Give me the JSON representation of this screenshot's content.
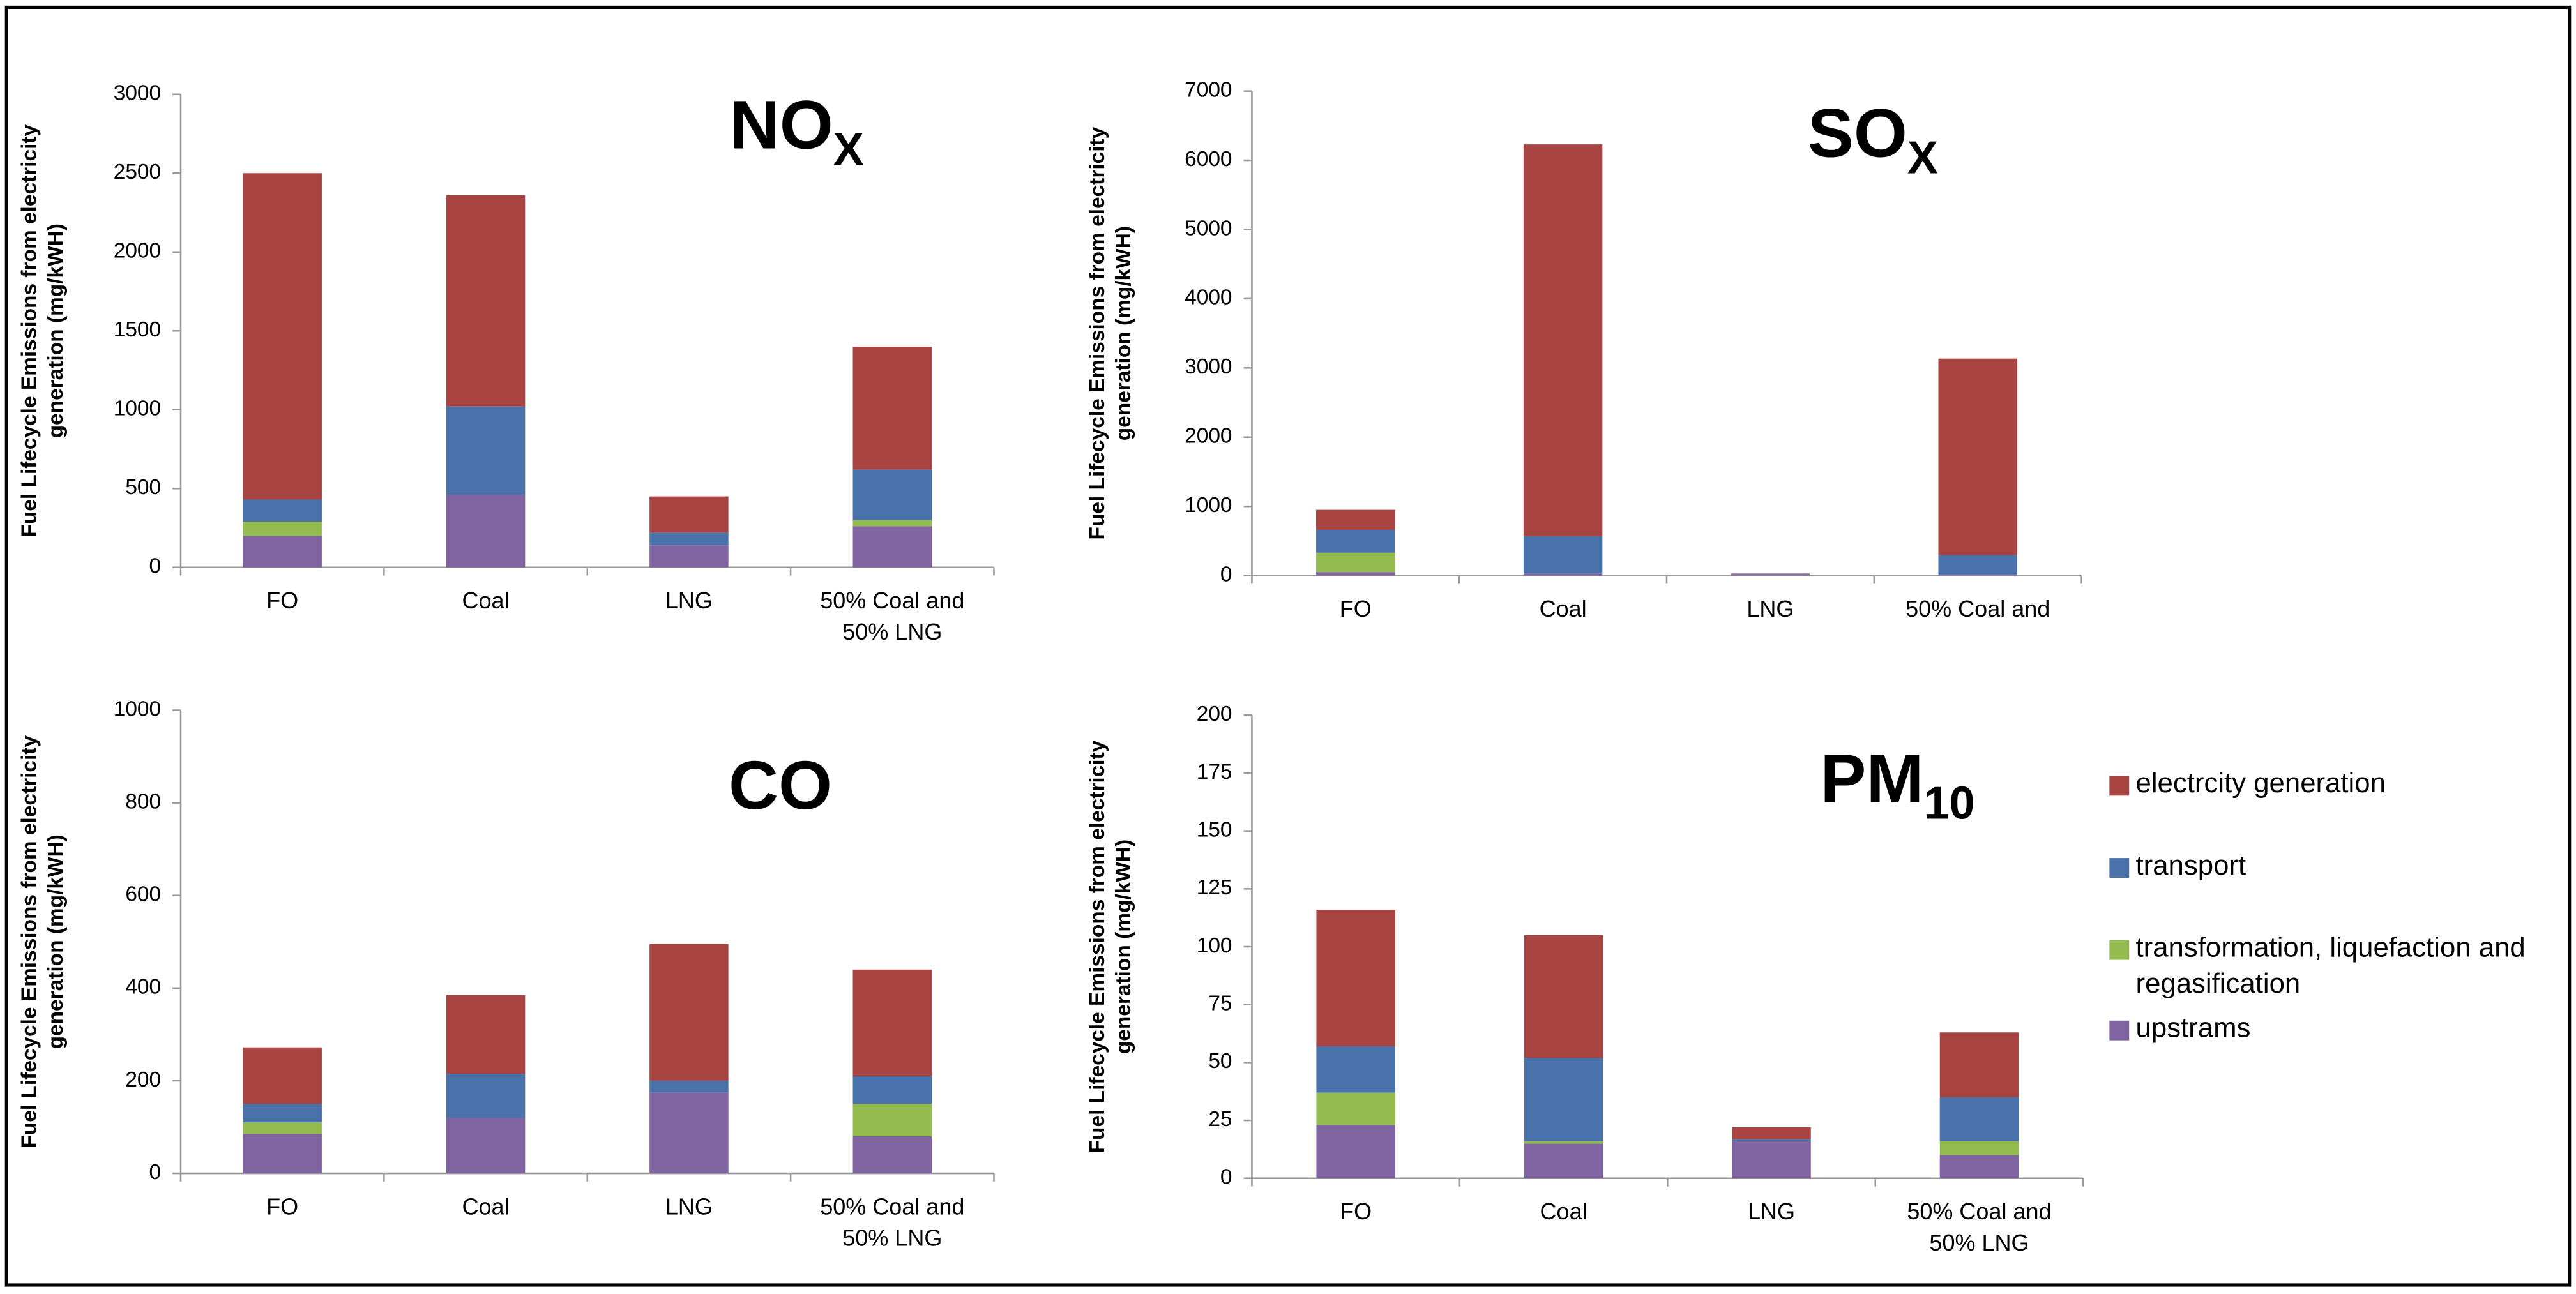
{
  "chart_data": [
    {
      "type": "bar",
      "stacked": true,
      "title": "NO",
      "title_subscript": "X",
      "y_label": [
        "Fuel Lifecycle Emissions from electricity",
        "generation (mg/kWH)"
      ],
      "categories": [
        "FO",
        "Coal",
        "LNG",
        [
          "50% Coal and",
          "50% LNG"
        ]
      ],
      "ylim": [
        0,
        3000
      ],
      "yticks": [
        0,
        500,
        1000,
        1500,
        2000,
        2500,
        3000
      ],
      "series": [
        {
          "name": "upstrams",
          "color": "#8064a2",
          "values": [
            200,
            460,
            140,
            260
          ]
        },
        {
          "name": "transformation, liquefaction and regasification",
          "color": "#93bb50",
          "values": [
            90,
            0,
            0,
            40
          ]
        },
        {
          "name": "transport",
          "color": "#4a72aa",
          "values": [
            140,
            560,
            80,
            320
          ]
        },
        {
          "name": "electrcity generation",
          "color": "#a84543",
          "values": [
            2070,
            1340,
            230,
            780
          ]
        }
      ]
    },
    {
      "type": "bar",
      "stacked": true,
      "title": "SO",
      "title_subscript": "X",
      "y_label": [
        "Fuel Lifecycle Emissions from electricity",
        "generation (mg/kWH)"
      ],
      "categories": [
        "FO",
        "Coal",
        "LNG",
        [
          "50% Coal and"
        ]
      ],
      "ylim": [
        0,
        7000
      ],
      "yticks": [
        0,
        1000,
        2000,
        3000,
        4000,
        5000,
        6000,
        7000
      ],
      "series": [
        {
          "name": "upstrams",
          "color": "#8064a2",
          "values": [
            50,
            30,
            20,
            15
          ]
        },
        {
          "name": "transformation, liquefaction and regasification",
          "color": "#93bb50",
          "values": [
            280,
            0,
            0,
            0
          ]
        },
        {
          "name": "transport",
          "color": "#4a72aa",
          "values": [
            330,
            540,
            5,
            280
          ]
        },
        {
          "name": "electrcity generation",
          "color": "#a84543",
          "values": [
            290,
            5660,
            5,
            2840
          ]
        }
      ]
    },
    {
      "type": "bar",
      "stacked": true,
      "title": "CO",
      "title_subscript": null,
      "y_label": [
        "Fuel Lifecycle Emissions from electricity",
        "generation (mg/kWH)"
      ],
      "categories": [
        "FO",
        "Coal",
        "LNG",
        [
          "50% Coal and",
          "50% LNG"
        ]
      ],
      "ylim": [
        0,
        1000
      ],
      "yticks": [
        0,
        200,
        400,
        600,
        800,
        1000
      ],
      "series": [
        {
          "name": "upstrams",
          "color": "#8064a2",
          "values": [
            85,
            120,
            175,
            80
          ]
        },
        {
          "name": "transformation, liquefaction and regasification",
          "color": "#93bb50",
          "values": [
            25,
            0,
            0,
            70
          ]
        },
        {
          "name": "transport",
          "color": "#4a72aa",
          "values": [
            40,
            95,
            25,
            60
          ]
        },
        {
          "name": "electrcity generation",
          "color": "#a84543",
          "values": [
            122,
            170,
            295,
            230
          ]
        }
      ]
    },
    {
      "type": "bar",
      "stacked": true,
      "title": "PM",
      "title_subscript": "10",
      "y_label": [
        "Fuel Lifecycle Emissions from electricity",
        "generation (mg/kWH)"
      ],
      "categories": [
        "FO",
        "Coal",
        "LNG",
        [
          "50% Coal and",
          "50% LNG"
        ]
      ],
      "ylim": [
        0,
        200
      ],
      "yticks": [
        0,
        25,
        50,
        75,
        100,
        125,
        150,
        175,
        200
      ],
      "legend": "right",
      "series": [
        {
          "name": "upstrams",
          "color": "#8064a2",
          "values": [
            23,
            15,
            16,
            10
          ]
        },
        {
          "name": "transformation, liquefaction and regasification",
          "color": "#93bb50",
          "values": [
            14,
            1,
            0,
            6
          ]
        },
        {
          "name": "transport",
          "color": "#4a72aa",
          "values": [
            20,
            36,
            1,
            19
          ]
        },
        {
          "name": "electrcity generation",
          "color": "#a84543",
          "values": [
            59,
            53,
            5,
            28
          ]
        }
      ]
    }
  ]
}
